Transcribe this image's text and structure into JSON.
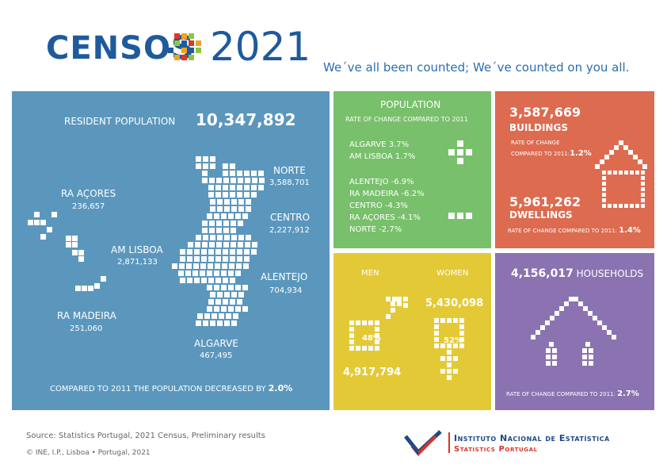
{
  "header": {
    "title_word": "CENSOS",
    "title_year": "2021",
    "tagline": "We´ve all been counted; We´ve counted on you all.",
    "logo_colors": [
      "#e0352b",
      "#f2a31b",
      "#8cc63f",
      "#1e5a9c"
    ]
  },
  "population_map": {
    "resident_label": "RESIDENT POPULATION",
    "resident_value": "10,347,892",
    "regions": [
      {
        "name": "NORTE",
        "value": "3,588,701"
      },
      {
        "name": "CENTRO",
        "value": "2,227,912"
      },
      {
        "name": "AM LISBOA",
        "value": "2,871,133"
      },
      {
        "name": "ALENTEJO",
        "value": "704,934"
      },
      {
        "name": "ALGARVE",
        "value": "467,495"
      },
      {
        "name": "RA AÇORES",
        "value": "236,657"
      },
      {
        "name": "RA MADEIRA",
        "value": "251,060"
      }
    ],
    "compared_text": "COMPARED TO 2011 THE POPULATION DECREASED BY ",
    "compared_value": "2.0%",
    "bg_color": "#5b97bd"
  },
  "population_change": {
    "title": "POPULATION",
    "subtitle": "RATE OF CHANGE COMPARED TO 2011",
    "increases": [
      "ALGARVE  3.7%",
      "AM LISBOA  1.7%"
    ],
    "decreases": [
      "ALENTEJO  -6.9%",
      "RA MADEIRA  -6.2%",
      "CENTRO  -4.3%",
      "RA AÇORES  -4.1%",
      "NORTE  -2.7%"
    ],
    "bg_color": "#78c06b"
  },
  "buildings": {
    "buildings_value": "3,587,669",
    "buildings_label": "BUILDINGS",
    "buildings_rate_label_1": "RATE OF CHANGE",
    "buildings_rate_label_2": "COMPARED TO 2011:",
    "buildings_rate_value": "1.2%",
    "dwellings_value": "5,961,262",
    "dwellings_label": "DWELLINGS",
    "dwellings_rate_label": "RATE OF CHANGE COMPARED TO 2011: ",
    "dwellings_rate_value": "1.4%",
    "bg_color": "#dc6b50"
  },
  "gender": {
    "men_label": "MEN",
    "women_label": "WOMEN",
    "men_value": "4,917,794",
    "women_value": "5,430,098",
    "men_pct": "48%",
    "women_pct": "52%",
    "bg_color": "#e4c937"
  },
  "households": {
    "value": "4,156,017",
    "label": "HOUSEHOLDS",
    "rate_label": "RATE OF CHANGE COMPARED TO 2011: ",
    "rate_value": "2.7%",
    "bg_color": "#8b73b2"
  },
  "footer": {
    "source": "Source: Statistics Portugal, 2021 Census, Preliminary results",
    "copyright": "© INE, I.P., Lisboa • Portugal, 2021",
    "ine_name": "Instituto Nacional de Estatística",
    "ine_name_en": "Statistics Portugal"
  }
}
